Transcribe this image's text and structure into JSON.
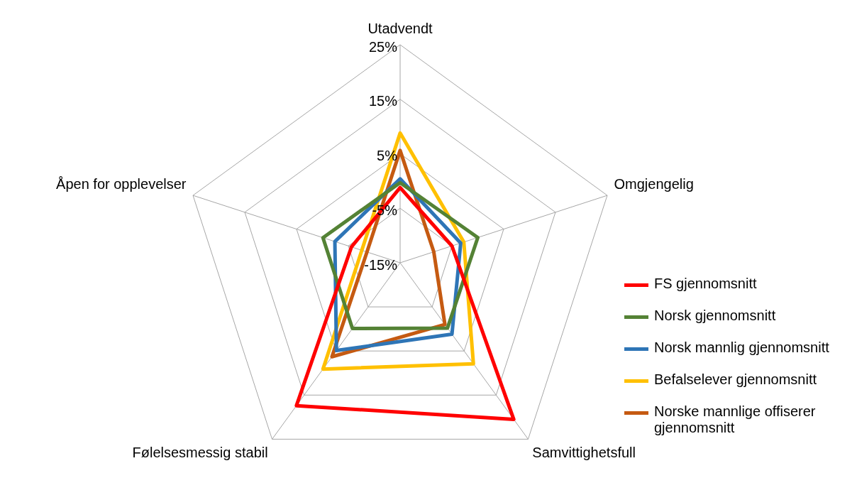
{
  "chart_data": {
    "type": "radar",
    "categories": [
      "Utadvendt",
      "Omgjengelig",
      "Samvittighetsfull",
      "Følelsesmessig stabil",
      "Åpen for opplevelser"
    ],
    "series": [
      {
        "name": "FS gjennomsnitt",
        "color": "#ff0000",
        "values": [
          -1.2,
          -5.0,
          20.5,
          17.4,
          -5.6
        ]
      },
      {
        "name": "Norsk gjennomsnitt",
        "color": "#548235",
        "values": [
          -0.3,
          0.0,
          -0.2,
          -0.1,
          -0.1
        ]
      },
      {
        "name": "Norsk mannlig gjennomsnitt",
        "color": "#2e75b6",
        "values": [
          0.4,
          -3.3,
          1.2,
          4.9,
          -2.4
        ]
      },
      {
        "name": "Befalselever gjennomsnitt",
        "color": "#ffc000",
        "values": [
          8.8,
          -2.7,
          7.9,
          9.1,
          -7.6
        ]
      },
      {
        "name": "Norske mannlige offiserer gjennomsnitt",
        "color": "#c55a11",
        "values": [
          5.6,
          -8.5,
          -1.0,
          6.3,
          -8.6
        ]
      }
    ],
    "ylim": [
      -15,
      25
    ],
    "yticks": [
      {
        "value": -15,
        "label": "-15%"
      },
      {
        "value": -5,
        "label": "-5%"
      },
      {
        "value": 5,
        "label": "5%"
      },
      {
        "value": 15,
        "label": "15%"
      },
      {
        "value": 25,
        "label": "25%"
      }
    ],
    "grid": true,
    "legend": "right",
    "marker": "none"
  }
}
